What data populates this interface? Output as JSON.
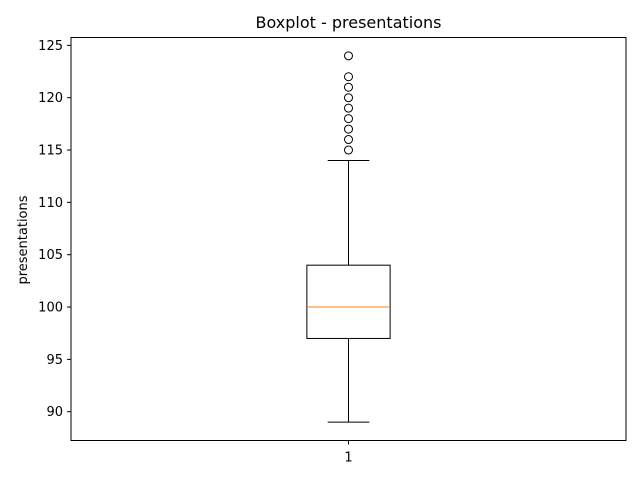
{
  "chart_data": {
    "type": "box",
    "title": "Boxplot - presentations",
    "xlabel": "",
    "ylabel": "presentations",
    "x_categories": [
      "1"
    ],
    "ylim": [
      87.25,
      125.75
    ],
    "yticks": [
      90,
      95,
      100,
      105,
      110,
      115,
      120,
      125
    ],
    "grid": false,
    "boxes": [
      {
        "category": "1",
        "whisker_low": 89,
        "q1": 97,
        "median": 100,
        "q3": 104,
        "whisker_high": 114,
        "outliers": [
          115,
          116,
          117,
          118,
          119,
          120,
          121,
          122,
          124
        ]
      }
    ],
    "colors": {
      "box": "#000000",
      "median": "#ff7f0e",
      "whisker": "#000000",
      "outlier": "#000000"
    }
  }
}
